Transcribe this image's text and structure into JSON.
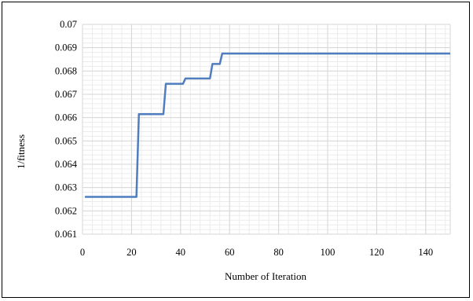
{
  "chart_data": {
    "type": "line",
    "title": "",
    "xlabel": "Number of Iteration",
    "ylabel": "1/fitness",
    "xlim": [
      0,
      150
    ],
    "ylim": [
      0.061,
      0.07
    ],
    "x_ticks": [
      0,
      20,
      40,
      60,
      80,
      100,
      120,
      140
    ],
    "y_ticks": [
      0.061,
      0.062,
      0.063,
      0.064,
      0.065,
      0.066,
      0.067,
      0.068,
      0.069,
      0.07
    ],
    "x_tick_labels": [
      "0",
      "20",
      "40",
      "60",
      "80",
      "100",
      "120",
      "140"
    ],
    "y_tick_labels": [
      "0.061",
      "0.062",
      "0.063",
      "0.064",
      "0.065",
      "0.066",
      "0.067",
      "0.068",
      "0.069",
      "0.07"
    ],
    "grid": true,
    "minor_grid": true,
    "legend": "none",
    "series": [
      {
        "color": "#4f7dbf",
        "x": [
          1,
          22,
          23,
          33,
          34,
          41,
          42,
          52,
          53,
          56,
          57,
          150
        ],
        "y": [
          0.0626,
          0.0626,
          0.06615,
          0.06615,
          0.06745,
          0.06745,
          0.06768,
          0.06768,
          0.0683,
          0.0683,
          0.06875,
          0.06875
        ]
      }
    ]
  }
}
